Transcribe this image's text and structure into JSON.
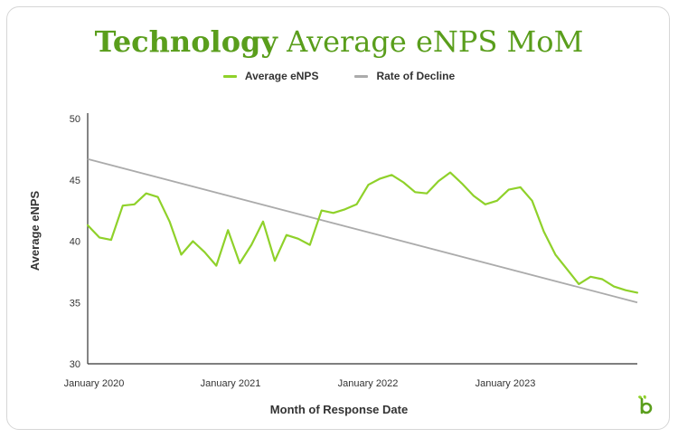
{
  "title": {
    "bold": "Technology",
    "rest": "Average eNPS MoM"
  },
  "colors": {
    "primary": "#8fd12a",
    "trend": "#ababab",
    "title": "#5a9e1c",
    "text": "#333333"
  },
  "legend": [
    {
      "name": "Average eNPS",
      "color": "#8fd12a"
    },
    {
      "name": "Rate of Decline",
      "color": "#ababab"
    }
  ],
  "logo": {
    "icon": "sprout-b-logo-icon"
  },
  "chart_data": {
    "type": "line",
    "xlabel": "Month of Response Date",
    "ylabel": "Average eNPS",
    "ylim": [
      30,
      50
    ],
    "yticks": [
      30,
      35,
      40,
      45,
      50
    ],
    "xticks": [
      "January 2020",
      "January 2021",
      "January 2022",
      "January 2023"
    ],
    "grid": false,
    "legend_position": "top-center",
    "series": [
      {
        "name": "Average eNPS",
        "x": [
          "2020-01",
          "2020-02",
          "2020-03",
          "2020-04",
          "2020-05",
          "2020-06",
          "2020-07",
          "2020-08",
          "2020-09",
          "2020-10",
          "2020-11",
          "2020-12",
          "2021-01",
          "2021-02",
          "2021-03",
          "2021-04",
          "2021-05",
          "2021-06",
          "2021-07",
          "2021-08",
          "2021-09",
          "2021-10",
          "2021-11",
          "2021-12",
          "2022-01",
          "2022-02",
          "2022-03",
          "2022-04",
          "2022-05",
          "2022-06",
          "2022-07",
          "2022-08",
          "2022-09",
          "2022-10",
          "2022-11",
          "2022-12",
          "2023-01",
          "2023-02",
          "2023-03",
          "2023-04",
          "2023-05",
          "2023-06",
          "2023-07",
          "2023-08",
          "2023-09",
          "2023-10",
          "2023-11",
          "2023-12"
        ],
        "values": [
          41.3,
          40.3,
          40.1,
          42.9,
          43.0,
          43.9,
          43.6,
          41.6,
          38.9,
          40.0,
          39.1,
          38.0,
          40.9,
          38.2,
          39.7,
          41.6,
          38.4,
          40.5,
          40.2,
          39.7,
          42.5,
          42.3,
          42.6,
          43.0,
          44.6,
          45.1,
          45.4,
          44.8,
          44.0,
          43.9,
          44.9,
          45.6,
          44.7,
          43.7,
          43.0,
          43.3,
          44.2,
          44.4,
          43.3,
          40.8,
          38.9,
          37.7,
          36.5,
          37.1,
          36.9,
          36.3,
          36.0,
          35.8
        ]
      },
      {
        "name": "Rate of Decline",
        "x": [
          "2020-01",
          "2023-12"
        ],
        "values": [
          46.7,
          35.0
        ]
      }
    ]
  }
}
